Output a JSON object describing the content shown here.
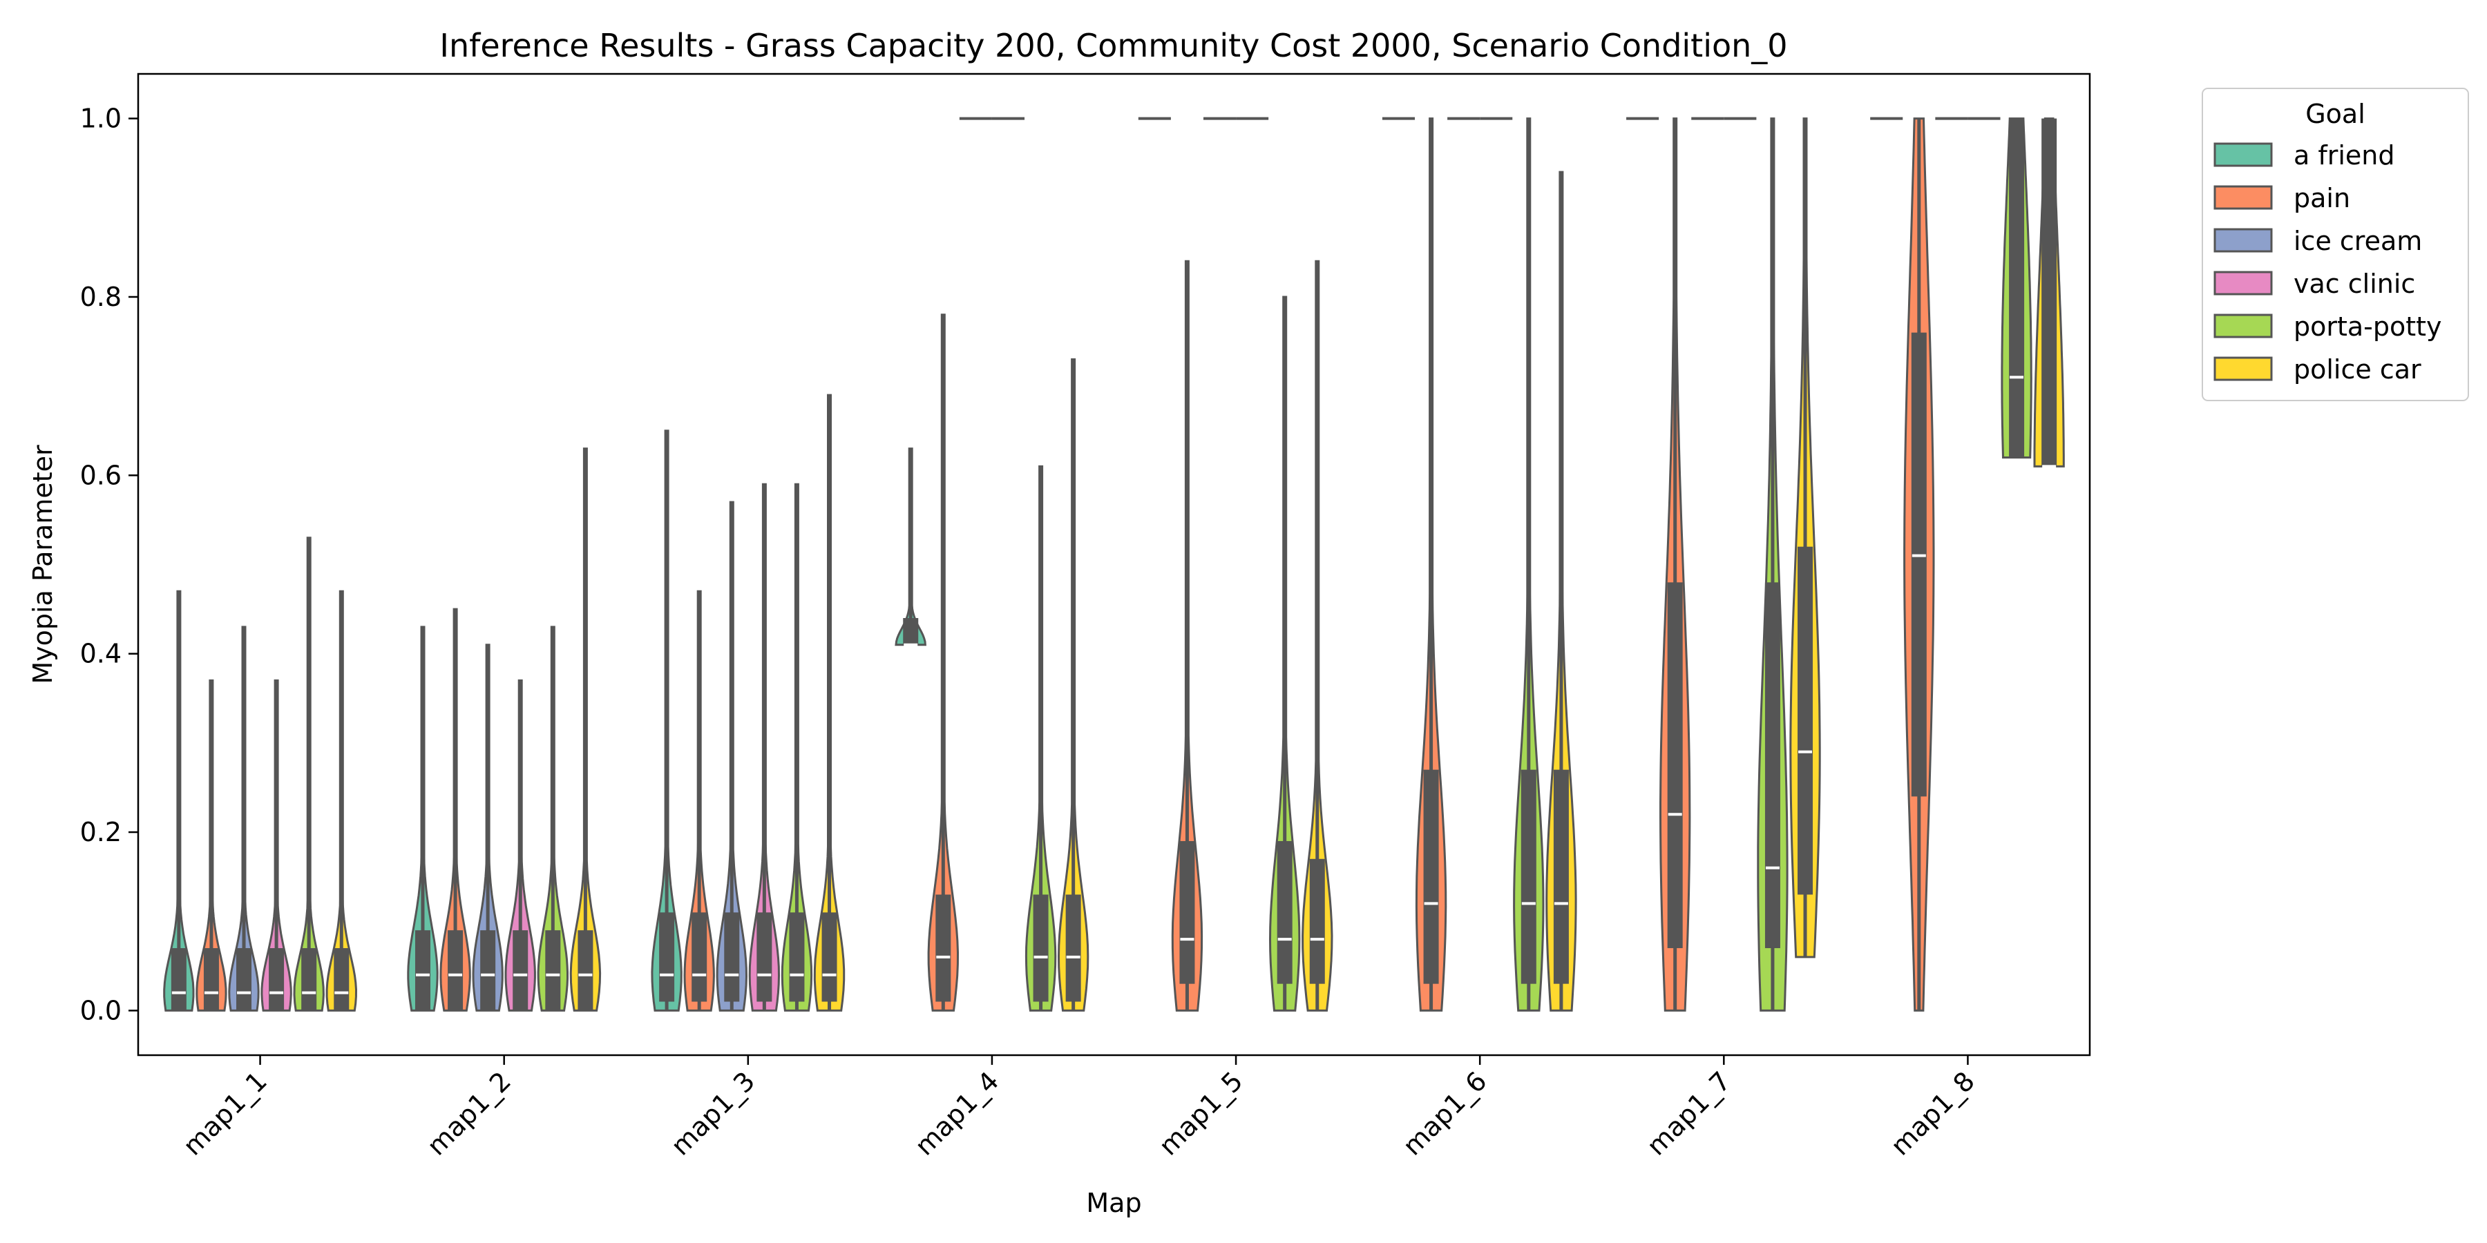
{
  "chart_data": {
    "type": "violin",
    "title": "Inference Results - Grass Capacity 200, Community Cost 2000, Scenario Condition_0",
    "xlabel": "Map",
    "ylabel": "Myopia Parameter",
    "ylim": [
      -0.05,
      1.05
    ],
    "yticks": [
      "0.0",
      "0.2",
      "0.4",
      "0.6",
      "0.8",
      "1.0"
    ],
    "categories": [
      "map1_1",
      "map1_2",
      "map1_3",
      "map1_4",
      "map1_5",
      "map1_6",
      "map1_7",
      "map1_8"
    ],
    "legend": {
      "title": "Goal",
      "placement": "outside-top-right",
      "entries": [
        {
          "name": "a friend",
          "color": "#66c2a5"
        },
        {
          "name": "pain",
          "color": "#fc8d62"
        },
        {
          "name": "ice cream",
          "color": "#8da0cb"
        },
        {
          "name": "vac clinic",
          "color": "#e78ac3"
        },
        {
          "name": "porta-potty",
          "color": "#a6d854"
        },
        {
          "name": "police car",
          "color": "#ffd92f"
        }
      ]
    },
    "grid": false,
    "series": [
      {
        "name": "a friend",
        "summaries": [
          {
            "min": 0.0,
            "q1": 0.0,
            "median": 0.02,
            "q3": 0.07,
            "max": 0.47
          },
          {
            "min": 0.0,
            "q1": 0.0,
            "median": 0.04,
            "q3": 0.09,
            "max": 0.43
          },
          {
            "min": 0.0,
            "q1": 0.01,
            "median": 0.04,
            "q3": 0.11,
            "max": 0.65
          },
          {
            "min": 0.41,
            "q1": 0.41,
            "median": 0.41,
            "q3": 0.44,
            "max": 0.63
          },
          {
            "min": 1.0,
            "q1": 1.0,
            "median": 1.0,
            "q3": 1.0,
            "max": 1.0
          },
          {
            "min": 1.0,
            "q1": 1.0,
            "median": 1.0,
            "q3": 1.0,
            "max": 1.0
          },
          {
            "min": 1.0,
            "q1": 1.0,
            "median": 1.0,
            "q3": 1.0,
            "max": 1.0
          },
          {
            "min": 1.0,
            "q1": 1.0,
            "median": 1.0,
            "q3": 1.0,
            "max": 1.0
          }
        ]
      },
      {
        "name": "pain",
        "summaries": [
          {
            "min": 0.0,
            "q1": 0.0,
            "median": 0.02,
            "q3": 0.07,
            "max": 0.37
          },
          {
            "min": 0.0,
            "q1": 0.0,
            "median": 0.04,
            "q3": 0.09,
            "max": 0.45
          },
          {
            "min": 0.0,
            "q1": 0.01,
            "median": 0.04,
            "q3": 0.11,
            "max": 0.47
          },
          {
            "min": 0.0,
            "q1": 0.01,
            "median": 0.06,
            "q3": 0.13,
            "max": 0.78
          },
          {
            "min": 0.0,
            "q1": 0.03,
            "median": 0.08,
            "q3": 0.19,
            "max": 0.84
          },
          {
            "min": 0.0,
            "q1": 0.03,
            "median": 0.12,
            "q3": 0.27,
            "max": 1.0
          },
          {
            "min": 0.0,
            "q1": 0.07,
            "median": 0.22,
            "q3": 0.48,
            "max": 1.0
          },
          {
            "min": 0.0,
            "q1": 0.24,
            "median": 0.51,
            "q3": 0.76,
            "max": 1.0
          }
        ]
      },
      {
        "name": "ice cream",
        "summaries": [
          {
            "min": 0.0,
            "q1": 0.0,
            "median": 0.02,
            "q3": 0.07,
            "max": 0.43
          },
          {
            "min": 0.0,
            "q1": 0.0,
            "median": 0.04,
            "q3": 0.09,
            "max": 0.41
          },
          {
            "min": 0.0,
            "q1": 0.01,
            "median": 0.04,
            "q3": 0.11,
            "max": 0.57
          },
          {
            "min": 1.0,
            "q1": 1.0,
            "median": 1.0,
            "q3": 1.0,
            "max": 1.0
          },
          {
            "min": 1.0,
            "q1": 1.0,
            "median": 1.0,
            "q3": 1.0,
            "max": 1.0
          },
          {
            "min": 1.0,
            "q1": 1.0,
            "median": 1.0,
            "q3": 1.0,
            "max": 1.0
          },
          {
            "min": 1.0,
            "q1": 1.0,
            "median": 1.0,
            "q3": 1.0,
            "max": 1.0
          },
          {
            "min": 1.0,
            "q1": 1.0,
            "median": 1.0,
            "q3": 1.0,
            "max": 1.0
          }
        ]
      },
      {
        "name": "vac clinic",
        "summaries": [
          {
            "min": 0.0,
            "q1": 0.0,
            "median": 0.02,
            "q3": 0.07,
            "max": 0.37
          },
          {
            "min": 0.0,
            "q1": 0.0,
            "median": 0.04,
            "q3": 0.09,
            "max": 0.37
          },
          {
            "min": 0.0,
            "q1": 0.01,
            "median": 0.04,
            "q3": 0.11,
            "max": 0.59
          },
          {
            "min": 1.0,
            "q1": 1.0,
            "median": 1.0,
            "q3": 1.0,
            "max": 1.0
          },
          {
            "min": 1.0,
            "q1": 1.0,
            "median": 1.0,
            "q3": 1.0,
            "max": 1.0
          },
          {
            "min": 1.0,
            "q1": 1.0,
            "median": 1.0,
            "q3": 1.0,
            "max": 1.0
          },
          {
            "min": 1.0,
            "q1": 1.0,
            "median": 1.0,
            "q3": 1.0,
            "max": 1.0
          },
          {
            "min": 1.0,
            "q1": 1.0,
            "median": 1.0,
            "q3": 1.0,
            "max": 1.0
          }
        ]
      },
      {
        "name": "porta-potty",
        "summaries": [
          {
            "min": 0.0,
            "q1": 0.0,
            "median": 0.02,
            "q3": 0.07,
            "max": 0.53
          },
          {
            "min": 0.0,
            "q1": 0.0,
            "median": 0.04,
            "q3": 0.09,
            "max": 0.43
          },
          {
            "min": 0.0,
            "q1": 0.01,
            "median": 0.04,
            "q3": 0.11,
            "max": 0.59
          },
          {
            "min": 0.0,
            "q1": 0.01,
            "median": 0.06,
            "q3": 0.13,
            "max": 0.61
          },
          {
            "min": 0.0,
            "q1": 0.03,
            "median": 0.08,
            "q3": 0.19,
            "max": 0.8
          },
          {
            "min": 0.0,
            "q1": 0.03,
            "median": 0.12,
            "q3": 0.27,
            "max": 1.0
          },
          {
            "min": 0.0,
            "q1": 0.07,
            "median": 0.16,
            "q3": 0.48,
            "max": 1.0
          },
          {
            "min": 0.62,
            "q1": 0.62,
            "median": 0.71,
            "q3": 1.0,
            "max": 1.0
          }
        ]
      },
      {
        "name": "police car",
        "summaries": [
          {
            "min": 0.0,
            "q1": 0.0,
            "median": 0.02,
            "q3": 0.07,
            "max": 0.47
          },
          {
            "min": 0.0,
            "q1": 0.0,
            "median": 0.04,
            "q3": 0.09,
            "max": 0.63
          },
          {
            "min": 0.0,
            "q1": 0.01,
            "median": 0.04,
            "q3": 0.11,
            "max": 0.69
          },
          {
            "min": 0.0,
            "q1": 0.01,
            "median": 0.06,
            "q3": 0.13,
            "max": 0.73
          },
          {
            "min": 0.0,
            "q1": 0.03,
            "median": 0.08,
            "q3": 0.17,
            "max": 0.84
          },
          {
            "min": 0.0,
            "q1": 0.03,
            "median": 0.12,
            "q3": 0.27,
            "max": 0.94
          },
          {
            "min": 0.06,
            "q1": 0.13,
            "median": 0.29,
            "q3": 0.52,
            "max": 1.0
          },
          {
            "min": 0.61,
            "q1": 0.61,
            "median": 0.61,
            "q3": 1.0,
            "max": 1.0
          }
        ]
      }
    ]
  }
}
